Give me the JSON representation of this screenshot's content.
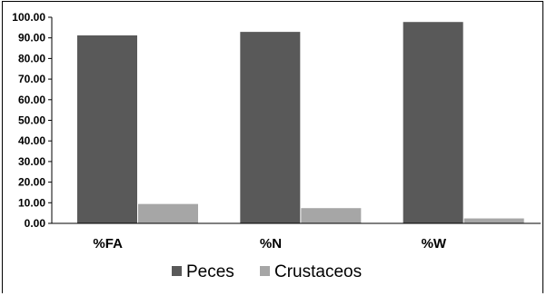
{
  "chart_data": {
    "type": "bar",
    "categories": [
      "%FA",
      "%N",
      "%W"
    ],
    "series": [
      {
        "name": "Peces",
        "values": [
          91.2,
          92.9,
          97.7
        ],
        "color": "#595959"
      },
      {
        "name": "Crustaceos",
        "values": [
          9.4,
          7.4,
          2.4
        ],
        "color": "#a6a6a6"
      }
    ],
    "ylim": [
      0,
      100
    ],
    "yticks": [
      "0.00",
      "10.00",
      "20.00",
      "30.00",
      "40.00",
      "50.00",
      "60.00",
      "70.00",
      "80.00",
      "90.00",
      "100.00"
    ],
    "grid": false,
    "legend": "bottom-center"
  }
}
